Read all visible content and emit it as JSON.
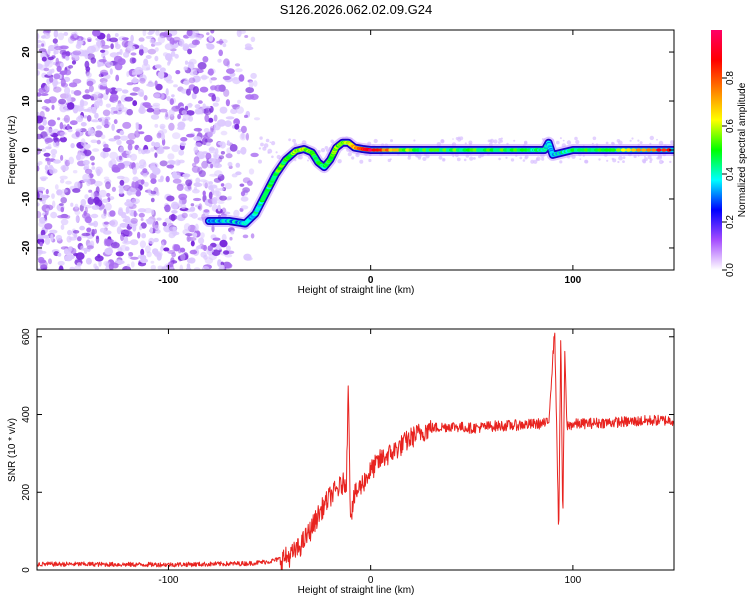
{
  "title": "S126.2026.062.02.09.G24",
  "chart_data": [
    {
      "type": "heatmap",
      "name": "spectrogram",
      "xlabel": "Height of straight line (km)",
      "ylabel": "Frequency (Hz)",
      "xlim": [
        -165,
        150
      ],
      "ylim": [
        -24.5,
        24.5
      ],
      "xticks": [
        -100,
        0,
        100
      ],
      "yticks": [
        -20,
        -10,
        0,
        10,
        20
      ],
      "grid": false,
      "colorbar": {
        "label": "Normalized spectral amplitude",
        "range": [
          0,
          1
        ],
        "ticks": [
          0.0,
          0.2,
          0.4,
          0.6,
          0.8
        ],
        "tick_labels": [
          "0.0",
          "0.2",
          "0.4",
          "0.6",
          "0.8"
        ],
        "colors": [
          "#ffffff",
          "#a64dff",
          "#0000ff",
          "#00ffff",
          "#00ff00",
          "#ffff00",
          "#ff8000",
          "#ff0000",
          "#ff0066"
        ]
      },
      "ridge": {
        "x": [
          -80,
          -70,
          -62,
          -57,
          -52,
          -47,
          -42,
          -37,
          -33,
          -29,
          -26,
          -23,
          -20,
          -17,
          -14,
          -11,
          -8,
          -4,
          0,
          20,
          40,
          60,
          80,
          86,
          88,
          90,
          100,
          120,
          150
        ],
        "y": [
          -14.5,
          -14.5,
          -15.0,
          -13.0,
          -9.0,
          -5.0,
          -2.0,
          -0.2,
          0.2,
          -0.5,
          -2.5,
          -3.5,
          -2.0,
          0.5,
          1.5,
          1.5,
          0.5,
          0.2,
          0.0,
          0.0,
          0.0,
          0.0,
          0.0,
          0.0,
          1.5,
          -1.0,
          0.0,
          0.0,
          0.0
        ],
        "amplitude": [
          0.35,
          0.35,
          0.35,
          0.4,
          0.45,
          0.5,
          0.5,
          0.55,
          0.6,
          0.5,
          0.45,
          0.45,
          0.5,
          0.55,
          0.55,
          0.6,
          0.7,
          0.85,
          0.95,
          0.5,
          0.5,
          0.5,
          0.45,
          0.4,
          0.35,
          0.35,
          0.45,
          0.5,
          0.95
        ]
      },
      "noise_region_x": [
        -165,
        -55
      ]
    },
    {
      "type": "line",
      "name": "snr",
      "xlabel": "Height of straight line (km)",
      "ylabel": "SNR (10 * v/v)",
      "xlim": [
        -165,
        150
      ],
      "ylim": [
        0,
        620
      ],
      "xticks": [
        -100,
        0,
        100
      ],
      "yticks": [
        0,
        200,
        400,
        600
      ],
      "grid": false,
      "series": [
        {
          "color": "#e8231f",
          "x": [
            -165,
            -140,
            -120,
            -100,
            -80,
            -60,
            -50,
            -40,
            -35,
            -30,
            -25,
            -20,
            -15,
            -12,
            -11,
            -10,
            -8,
            -5,
            0,
            5,
            10,
            15,
            20,
            25,
            30,
            40,
            50,
            60,
            70,
            80,
            88,
            91,
            93,
            94,
            95,
            96,
            97,
            100,
            110,
            120,
            130,
            140,
            150
          ],
          "y": [
            15,
            15,
            14,
            14,
            15,
            17,
            22,
            35,
            60,
            100,
            150,
            190,
            215,
            230,
            485,
            140,
            190,
            215,
            255,
            285,
            300,
            320,
            340,
            355,
            365,
            370,
            365,
            370,
            372,
            375,
            378,
            620,
            90,
            610,
            120,
            560,
            370,
            375,
            378,
            380,
            382,
            385,
            385
          ]
        }
      ]
    }
  ]
}
